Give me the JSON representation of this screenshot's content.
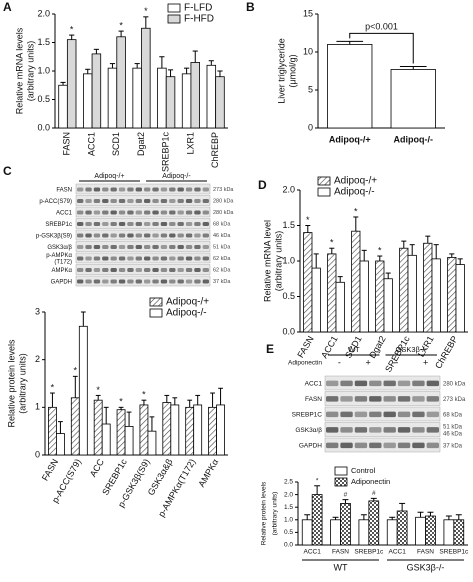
{
  "chart_data": [
    {
      "type": "bar",
      "label": "A",
      "ylabel": [
        "Relative mRNA levels",
        "(arbitrary units)"
      ],
      "categories": [
        "FASN",
        "ACC1",
        "SCD1",
        "Dgat2",
        "SREBP1c",
        "LXR1",
        "ChREBP"
      ],
      "series": [
        {
          "name": "F-LFD",
          "color": "#ffffff",
          "values": [
            0.75,
            0.95,
            1.05,
            1.05,
            1.05,
            0.95,
            1.1
          ],
          "errors": [
            0.05,
            0.08,
            0.08,
            0.08,
            0.2,
            0.1,
            0.08
          ],
          "marks": [
            null,
            null,
            null,
            null,
            null,
            null,
            null
          ]
        },
        {
          "name": "F-HFD",
          "color": "#d9d9d9",
          "values": [
            1.55,
            1.3,
            1.6,
            1.75,
            0.9,
            1.15,
            0.9
          ],
          "errors": [
            0.08,
            0.08,
            0.1,
            0.2,
            0.12,
            0.2,
            0.1
          ],
          "marks": [
            "*",
            null,
            "*",
            "*",
            null,
            null,
            null
          ]
        }
      ],
      "ylim": [
        0,
        2
      ],
      "yticks": [
        {
          "value": 0,
          "label": "0.0"
        },
        0.5,
        {
          "value": 1,
          "label": "1.0"
        },
        1.5,
        {
          "value": 2,
          "label": "2.0"
        }
      ],
      "legend": "upper right"
    },
    {
      "type": "bar",
      "label": "B",
      "ylabel": [
        "Liver triglyceride",
        "(μmol/g)"
      ],
      "categories": [
        "Adipoq-/+",
        "Adipoq-/-"
      ],
      "series": [
        {
          "color": "#ffffff",
          "values": [
            11,
            7.7
          ],
          "errors": [
            0.4,
            0.4
          ]
        }
      ],
      "ylim": [
        0,
        15
      ],
      "yticks": [
        0,
        5,
        10,
        15
      ],
      "annotation": "p<0.001"
    },
    {
      "type": "bar",
      "ylabel": [
        "Relative protein levels",
        "(arbitrary units)"
      ],
      "categories": [
        "FASN",
        "p-ACC(S79)",
        "ACC",
        "SREBP1c",
        "p-GSK3β(S9)",
        "GSK3α&β",
        "p-AMPKα(T172)",
        "AMPKα"
      ],
      "series": [
        {
          "name": "Adipoq-/+",
          "color": "#ffffff",
          "pattern": "hatch",
          "values": [
            1.0,
            1.2,
            1.15,
            0.95,
            1.05,
            1.1,
            1.0,
            1.0
          ],
          "errors": [
            0.3,
            0.45,
            0.1,
            0.05,
            0.1,
            0.15,
            0.15,
            0.3
          ],
          "marks": [
            "*",
            "*",
            "*",
            "*",
            "*",
            null,
            null,
            null
          ]
        },
        {
          "name": "Adipoq-/-",
          "color": "#ffffff",
          "values": [
            0.45,
            2.7,
            0.65,
            0.6,
            0.5,
            1.05,
            1.05,
            1.05
          ],
          "errors": [
            0.25,
            0.3,
            0.35,
            0.3,
            0.3,
            0.15,
            0.2,
            0.35
          ],
          "marks": [
            null,
            null,
            null,
            null,
            null,
            null,
            null,
            null
          ]
        }
      ],
      "ylim": [
        0,
        3
      ],
      "yticks": [
        0,
        1,
        2,
        3
      ],
      "legend": "upper right"
    },
    {
      "type": "bar",
      "label": "D",
      "ylabel": [
        "Relative mRNA level",
        "(arbitrary units)"
      ],
      "categories": [
        "FASN",
        "ACC1",
        "SCD1",
        "Dgat2",
        "SREBP1c",
        "LXR1",
        "ChREBP"
      ],
      "series": [
        {
          "name": "Adipoq-/+",
          "color": "#ffffff",
          "pattern": "hatch",
          "values": [
            1.4,
            1.1,
            1.42,
            1.0,
            1.18,
            1.25,
            1.05
          ],
          "errors": [
            0.1,
            0.08,
            0.2,
            0.07,
            0.1,
            0.1,
            0.05
          ],
          "marks": [
            "*",
            "*",
            "*",
            "*",
            null,
            null,
            null
          ]
        },
        {
          "name": "Adipoq-/-",
          "color": "#ffffff",
          "values": [
            0.9,
            0.7,
            1.0,
            0.75,
            1.08,
            1.03,
            0.95
          ],
          "errors": [
            0.2,
            0.08,
            0.15,
            0.08,
            0.15,
            0.2,
            0.08
          ],
          "marks": [
            null,
            null,
            null,
            null,
            null,
            null,
            null
          ]
        }
      ],
      "ylim": [
        0,
        2
      ],
      "yticks": [
        {
          "value": 0,
          "label": "0.0"
        },
        0.5,
        {
          "value": 1,
          "label": "1.0"
        },
        1.5,
        {
          "value": 2,
          "label": "2.0"
        }
      ],
      "legend": "upper left"
    },
    {
      "type": "bar",
      "ylabel": [
        "Relative protein levels",
        "(arbitrary units)"
      ],
      "categories": [
        "ACC1",
        "FASN",
        "SREBP1c",
        "ACC1",
        "FASN",
        "SREBP1c"
      ],
      "groups": [
        "WT",
        "GSK3β-/-"
      ],
      "series": [
        {
          "name": "Control",
          "color": "#ffffff",
          "values": [
            1.0,
            1.0,
            1.0,
            1.0,
            1.1,
            1.0
          ],
          "errors": [
            0.2,
            0.1,
            0.2,
            0.1,
            0.2,
            0.15
          ],
          "marks": [
            null,
            null,
            null,
            null,
            null,
            null
          ]
        },
        {
          "name": "Adiponectin",
          "color": "#ffffff",
          "pattern": "check",
          "values": [
            2.0,
            1.65,
            1.75,
            1.35,
            1.15,
            1.0
          ],
          "errors": [
            0.35,
            0.15,
            0.1,
            0.3,
            0.15,
            0.2
          ],
          "marks": [
            "*",
            "#",
            "#",
            null,
            null,
            null
          ]
        }
      ],
      "ylim": [
        0,
        2.5
      ],
      "yticks": [
        {
          "value": 0,
          "label": "0.0"
        },
        0.5,
        {
          "value": 1,
          "label": "1.0"
        },
        1.5,
        {
          "value": 2,
          "label": "2.0"
        },
        2.5
      ],
      "legend": "upper left"
    }
  ],
  "blots": [
    {
      "label": "C",
      "groups": [
        "Adipoq-/+",
        "Adipoq-/-"
      ],
      "rows": [
        {
          "name": "FASN",
          "kda": [
            "273 kDa"
          ]
        },
        {
          "name": "p-ACC(S79)",
          "kda": [
            "280 kDa"
          ]
        },
        {
          "name": "ACC1",
          "kda": [
            "280 kDa"
          ]
        },
        {
          "name": "SREBP1c",
          "kda": [
            "68 kDa"
          ]
        },
        {
          "name": "p-GSK3β(S9)",
          "kda": [
            "46 kDa"
          ]
        },
        {
          "name": "GSK3α/β",
          "kda": [
            "51 kDa"
          ]
        },
        {
          "name": [
            "p-AMPKα",
            "(T172)"
          ],
          "kda": [
            "62 kDa"
          ]
        },
        {
          "name": "AMPKα",
          "kda": [
            "62 kDa"
          ]
        },
        {
          "name": "GAPDH",
          "kda": [
            "37 kDa"
          ]
        }
      ]
    },
    {
      "label": "E",
      "groups": [
        "WT",
        "GSK3β-/-"
      ],
      "treatment": "Adiponectin",
      "lanes": [
        "-",
        "+",
        "-",
        "+"
      ],
      "rows": [
        {
          "name": "ACC1",
          "kda": [
            "280 kDa"
          ]
        },
        {
          "name": "FASN",
          "kda": [
            "273 kDa"
          ]
        },
        {
          "name": "SREBP1C",
          "kda": [
            "68 kDa"
          ]
        },
        {
          "name": "GSK3α/β",
          "kda": [
            "51 kDa",
            "46 kDa"
          ]
        },
        {
          "name": "GAPDH",
          "kda": [
            "37 kDa"
          ]
        }
      ]
    }
  ]
}
